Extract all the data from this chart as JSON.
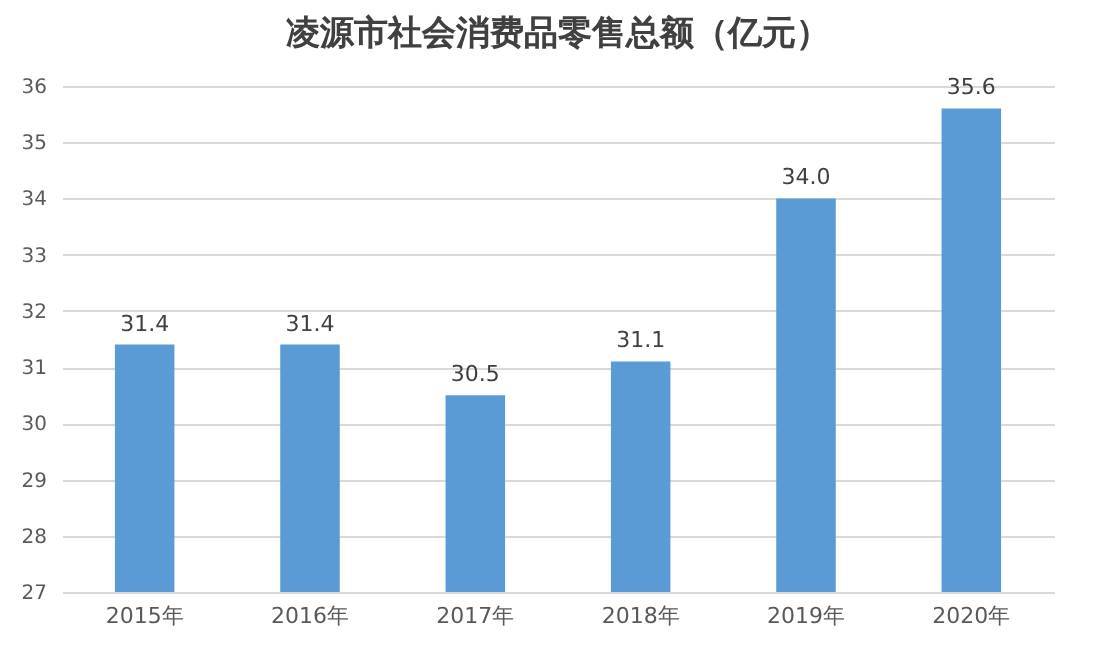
{
  "chart_data": {
    "type": "bar",
    "title": "凌源市社会消费品零售总额（亿元）",
    "categories": [
      "2015年",
      "2016年",
      "2017年",
      "2018年",
      "2019年",
      "2020年"
    ],
    "values": [
      31.4,
      31.4,
      30.5,
      31.1,
      34.0,
      35.6
    ],
    "value_labels": [
      "31.4",
      "31.4",
      "30.5",
      "31.1",
      "34.0",
      "35.6"
    ],
    "color": "#5b9bd5",
    "ylim": [
      27,
      36
    ],
    "yticks": [
      27,
      28,
      29,
      30,
      31,
      32,
      33,
      34,
      35,
      36
    ],
    "grid": "y"
  }
}
